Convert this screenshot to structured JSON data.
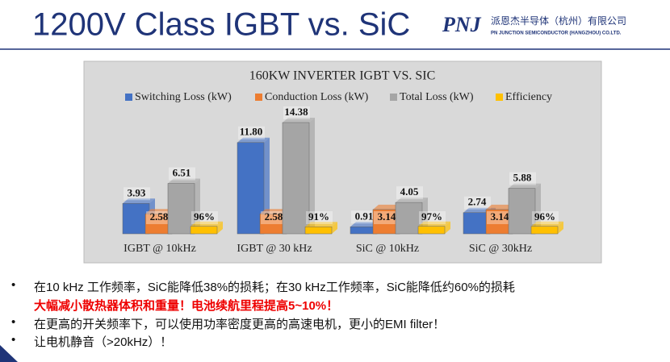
{
  "header": {
    "title": "1200V Class IGBT vs. SiC",
    "logo": "PNJ",
    "company_cn": "派恩杰半导体（杭州）有限公司",
    "company_en": "PN JUNCTION SEMICONDUCTOR (HANGZHOU) CO.LTD."
  },
  "chart_data": {
    "type": "bar",
    "title": "160KW INVERTER IGBT VS. SIC",
    "categories": [
      "IGBT @ 10kHz",
      "IGBT @ 30 kHz",
      "SiC @ 10kHz",
      "SiC @ 30kHz"
    ],
    "series": [
      {
        "name": "Switching Loss (kW)",
        "color": "#4472c4",
        "values": [
          3.93,
          11.8,
          0.91,
          2.74
        ],
        "value_labels": [
          "3.93",
          "11.80",
          "0.91",
          "2.74"
        ]
      },
      {
        "name": "Conduction Loss (kW)",
        "color": "#ed7d31",
        "values": [
          2.58,
          2.58,
          3.14,
          3.14
        ]
      },
      {
        "name": "Total Loss (kW)",
        "color": "#a5a5a5",
        "values": [
          6.51,
          14.38,
          4.05,
          5.88
        ]
      },
      {
        "name": "Efficiency",
        "color": "#ffc000",
        "values": [
          0.96,
          0.91,
          0.97,
          0.96
        ],
        "value_labels": [
          "96%",
          "91%",
          "97%",
          "96%"
        ]
      }
    ]
  },
  "bullets": [
    {
      "text": "在10 kHz 工作频率，SiC能降低38%的损耗；在30 kHz工作频率，SiC能降低约60%的损耗",
      "highlight": "大幅减小散热器体积和重量！电池续航里程提高5~10%！"
    },
    {
      "text": "在更高的开关频率下，可以使用功率密度更高的高速电机，更小的EMI filter！"
    },
    {
      "text": "让电机静音（>20kHz）！"
    }
  ]
}
